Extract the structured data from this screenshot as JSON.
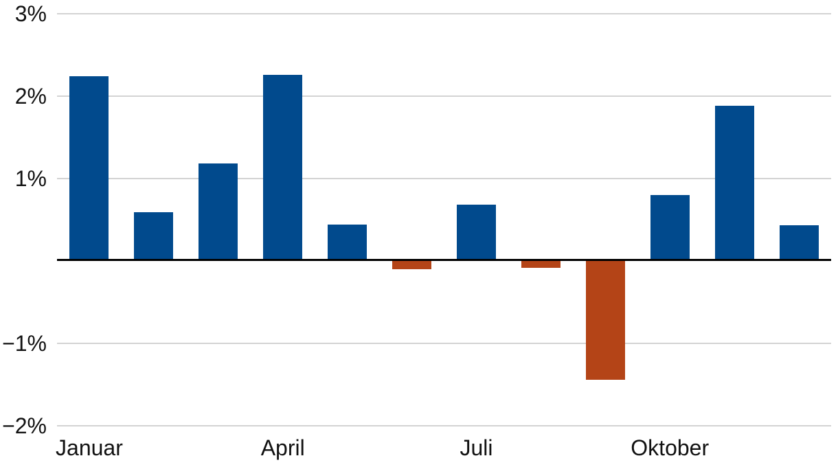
{
  "chart_data": {
    "type": "bar",
    "title": "",
    "xlabel": "",
    "ylabel": "",
    "unit": "%",
    "values": [
      2.24,
      0.59,
      1.18,
      2.26,
      0.44,
      -0.1,
      0.68,
      -0.08,
      -1.44,
      0.8,
      1.88,
      0.43
    ],
    "x_ticks": [
      {
        "bar_index": 0,
        "label": "Januar"
      },
      {
        "bar_index": 3,
        "label": "April"
      },
      {
        "bar_index": 6,
        "label": "Juli"
      },
      {
        "bar_index": 9,
        "label": "Oktober"
      }
    ],
    "y_ticks": [
      {
        "value": 3,
        "label": "3%"
      },
      {
        "value": 2,
        "label": "2%"
      },
      {
        "value": 1,
        "label": "1%"
      },
      {
        "value": -1,
        "label": "−1%"
      },
      {
        "value": -2,
        "label": "−2%"
      }
    ],
    "ylim": [
      -2,
      3
    ],
    "grid": "horizontal",
    "legend": "none",
    "zero_axis": true,
    "colors": {
      "positive": "#014A8D",
      "negative": "#B44417",
      "gridline": "#D3D3D3",
      "axis": "#000000",
      "text": "#111111"
    }
  }
}
